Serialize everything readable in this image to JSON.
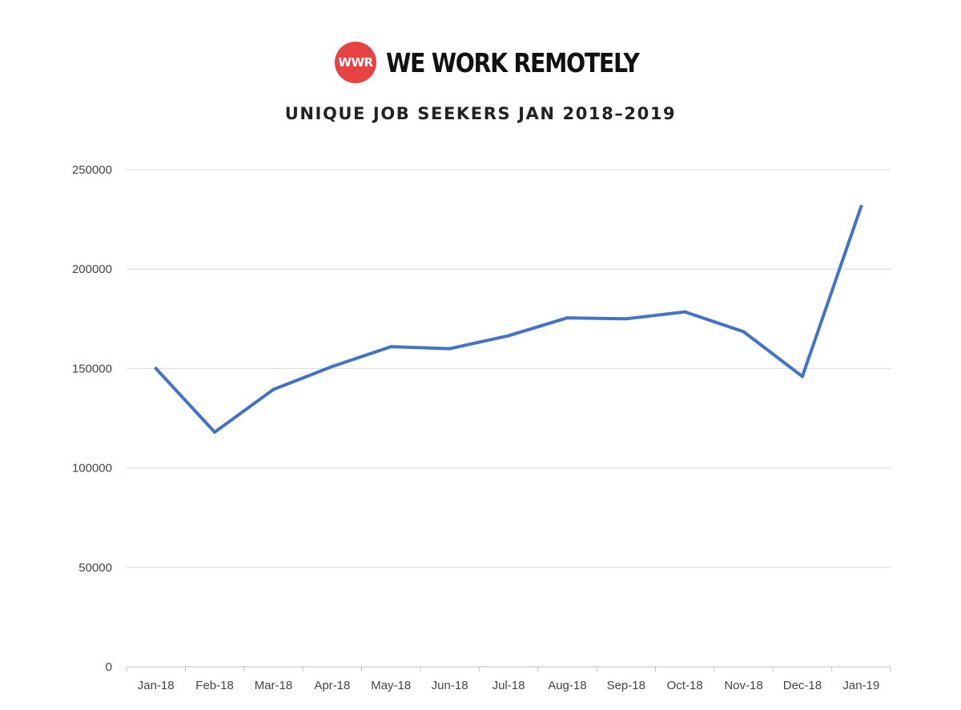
{
  "brand": {
    "logo_text": "WWR",
    "name": "WE WORK REMOTELY",
    "logo_color": "#e84343"
  },
  "chart_data": {
    "type": "line",
    "title": "UNIQUE JOB SEEKERS JAN 2018–2019",
    "xlabel": "",
    "ylabel": "",
    "categories": [
      "Jan-18",
      "Feb-18",
      "Mar-18",
      "Apr-18",
      "May-18",
      "Jun-18",
      "Jul-18",
      "Aug-18",
      "Sep-18",
      "Oct-18",
      "Nov-18",
      "Dec-18",
      "Jan-19"
    ],
    "series": [
      {
        "values": [
          150000,
          118000,
          139500,
          151000,
          161000,
          160000,
          166500,
          175500,
          175000,
          178500,
          168500,
          146000,
          231500
        ],
        "color": "#4472c4"
      }
    ],
    "ylim": [
      0,
      250000
    ],
    "yticks": [
      "0",
      "50000",
      "100000",
      "150000",
      "200000",
      "250000"
    ],
    "grid": true,
    "legend": "none"
  }
}
